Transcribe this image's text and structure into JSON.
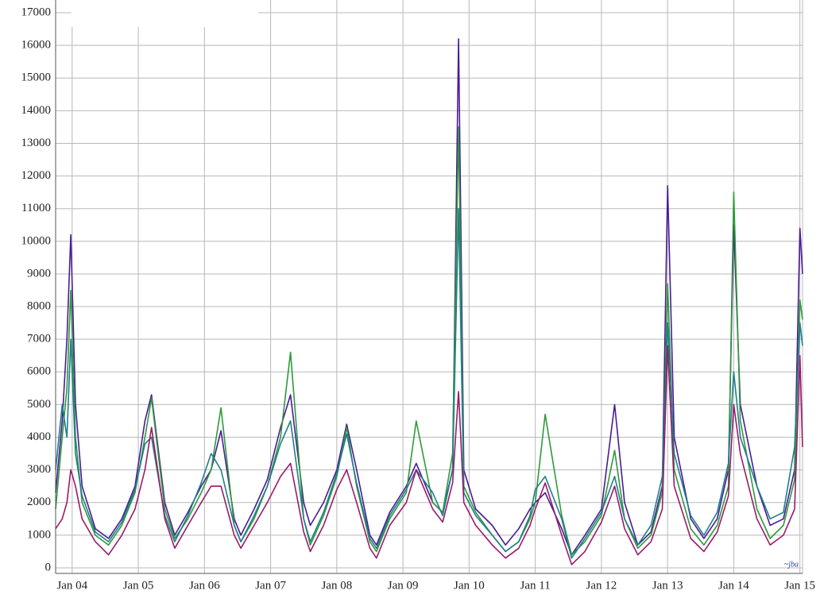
{
  "chart_data": {
    "type": "line",
    "watermark": "~jba",
    "x": [
      2003.75,
      2003.85,
      2003.92,
      2003.98,
      2004.05,
      2004.15,
      2004.35,
      2004.55,
      2004.75,
      2004.95,
      2005.1,
      2005.2,
      2005.4,
      2005.55,
      2005.75,
      2005.95,
      2006.1,
      2006.25,
      2006.45,
      2006.55,
      2006.75,
      2006.95,
      2007.15,
      2007.3,
      2007.5,
      2007.6,
      2007.8,
      2008.0,
      2008.15,
      2008.3,
      2008.5,
      2008.6,
      2008.8,
      2009.05,
      2009.2,
      2009.45,
      2009.6,
      2009.75,
      2009.84,
      2009.92,
      2010.1,
      2010.35,
      2010.55,
      2010.75,
      2010.92,
      2011.0,
      2011.15,
      2011.4,
      2011.55,
      2011.75,
      2012.0,
      2012.2,
      2012.35,
      2012.55,
      2012.75,
      2012.92,
      2013.0,
      2013.1,
      2013.35,
      2013.55,
      2013.75,
      2013.92,
      2014.0,
      2014.1,
      2014.35,
      2014.55,
      2014.75,
      2014.92,
      2015.0,
      2015.04
    ],
    "series": [
      {
        "color": "#4b1a96",
        "values": [
          2300,
          4500,
          7000,
          10200,
          5000,
          2500,
          1200,
          900,
          1500,
          2500,
          4500,
          5300,
          2000,
          1000,
          1700,
          2500,
          3000,
          4200,
          1500,
          1000,
          1800,
          2700,
          4300,
          5300,
          2000,
          1300,
          2000,
          3000,
          4400,
          3000,
          1000,
          700,
          1700,
          2500,
          3200,
          2000,
          1700,
          3000,
          16200,
          3000,
          1800,
          1300,
          700,
          1200,
          1800,
          2000,
          2300,
          1200,
          400,
          1000,
          1800,
          5000,
          2000,
          700,
          1100,
          2500,
          11700,
          4000,
          1500,
          900,
          1500,
          3000,
          10500,
          5000,
          2500,
          1300,
          1500,
          3000,
          10400,
          9000
        ]
      },
      {
        "color": "#2e9a3a",
        "values": [
          1800,
          4000,
          5500,
          8500,
          4000,
          2000,
          1000,
          700,
          1300,
          2300,
          4000,
          5200,
          1800,
          900,
          1500,
          2300,
          3000,
          4900,
          1300,
          800,
          1500,
          2500,
          4000,
          6600,
          1500,
          700,
          1600,
          2800,
          4300,
          2500,
          800,
          500,
          1500,
          2300,
          4500,
          2000,
          1700,
          3500,
          13500,
          2500,
          1700,
          1000,
          500,
          800,
          1500,
          2000,
          4700,
          1600,
          400,
          800,
          1600,
          3600,
          1500,
          600,
          1000,
          2300,
          8700,
          3000,
          1200,
          700,
          1300,
          2500,
          11500,
          4500,
          1800,
          900,
          1300,
          2700,
          8200,
          7600
        ]
      },
      {
        "color": "#1f7f8a",
        "values": [
          3000,
          5000,
          4000,
          7000,
          3500,
          2200,
          1100,
          800,
          1400,
          2400,
          3800,
          4000,
          1600,
          800,
          1600,
          2600,
          3500,
          3000,
          1300,
          800,
          1600,
          2500,
          3800,
          4500,
          1500,
          800,
          1700,
          2900,
          4100,
          2600,
          900,
          600,
          1600,
          2400,
          3000,
          2300,
          1600,
          3000,
          11000,
          2300,
          1600,
          1000,
          500,
          800,
          1600,
          2400,
          2800,
          1500,
          300,
          900,
          1700,
          2800,
          1500,
          700,
          1300,
          2800,
          7500,
          3500,
          1600,
          1000,
          1700,
          3200,
          6000,
          4000,
          2500,
          1500,
          1700,
          3700,
          7500,
          6800
        ]
      },
      {
        "color": "#9a1a6a",
        "values": [
          1200,
          1500,
          2000,
          3000,
          2500,
          1500,
          800,
          400,
          1000,
          1800,
          3000,
          4300,
          1500,
          600,
          1300,
          2000,
          2500,
          2500,
          1000,
          600,
          1300,
          2000,
          2800,
          3200,
          1100,
          500,
          1300,
          2400,
          3000,
          2000,
          600,
          300,
          1300,
          2000,
          3000,
          1800,
          1400,
          2600,
          5400,
          2000,
          1300,
          700,
          300,
          600,
          1300,
          1800,
          2600,
          1000,
          100,
          500,
          1400,
          2500,
          1200,
          400,
          800,
          1800,
          6800,
          2500,
          900,
          500,
          1100,
          2200,
          5000,
          3500,
          1500,
          700,
          1000,
          1800,
          6500,
          3700
        ]
      }
    ],
    "xlim": [
      2003.75,
      2015.04
    ],
    "xticks": [
      {
        "value": 2004,
        "label": "Jan 04"
      },
      {
        "value": 2005,
        "label": "Jan 05"
      },
      {
        "value": 2006,
        "label": "Jan 06"
      },
      {
        "value": 2007,
        "label": "Jan 07"
      },
      {
        "value": 2008,
        "label": "Jan 08"
      },
      {
        "value": 2009,
        "label": "Jan 09"
      },
      {
        "value": 2010,
        "label": "Jan 10"
      },
      {
        "value": 2011,
        "label": "Jan 11"
      },
      {
        "value": 2012,
        "label": "Jan 12"
      },
      {
        "value": 2013,
        "label": "Jan 13"
      },
      {
        "value": 2014,
        "label": "Jan 14"
      },
      {
        "value": 2015,
        "label": "Jan 15"
      }
    ],
    "ylim": [
      0,
      17000
    ],
    "yticks": [
      0,
      1000,
      2000,
      3000,
      4000,
      5000,
      6000,
      7000,
      8000,
      9000,
      10000,
      11000,
      12000,
      13000,
      14000,
      15000,
      16000,
      17000
    ],
    "grid": true
  }
}
